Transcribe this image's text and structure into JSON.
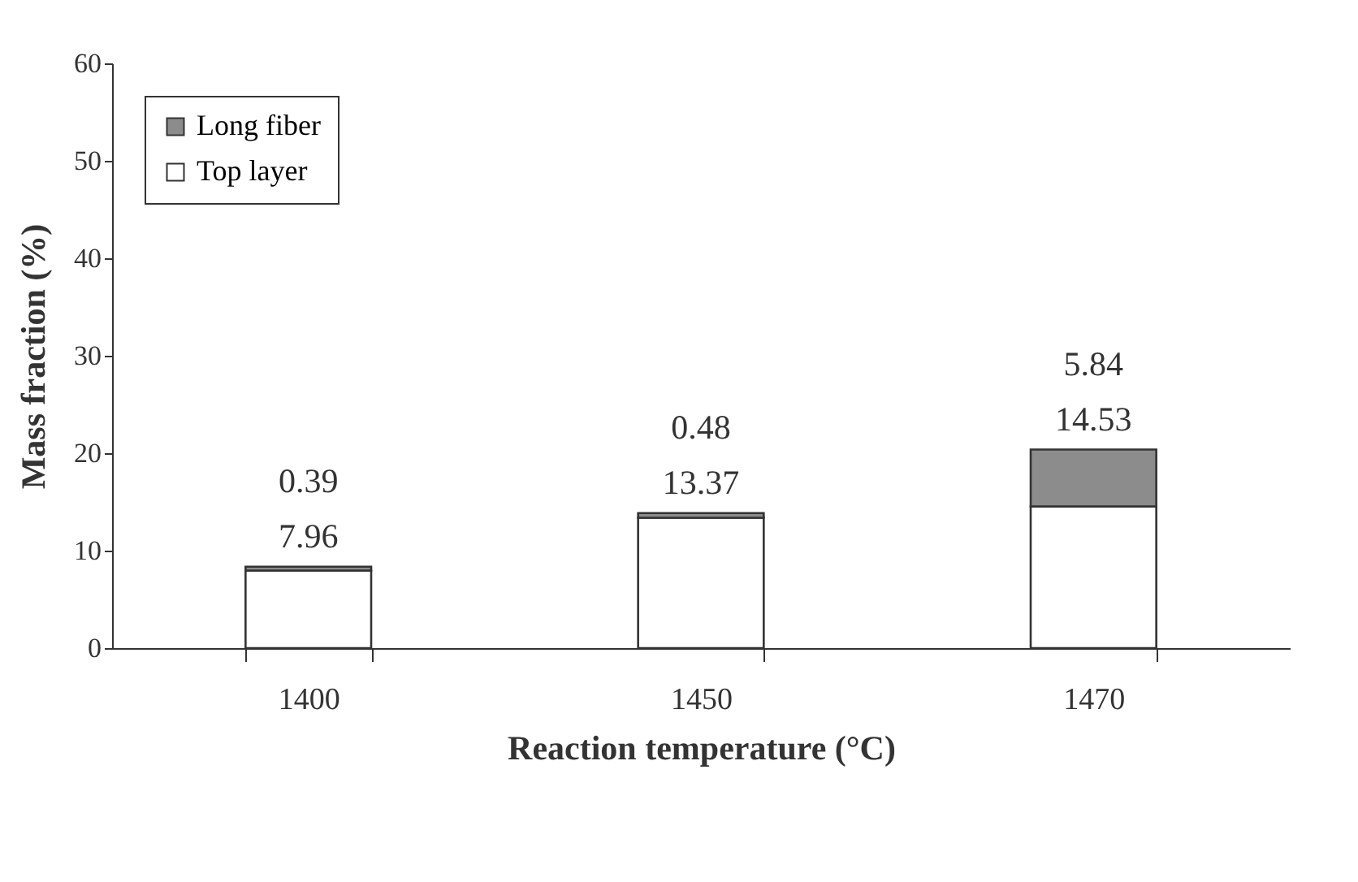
{
  "chart_data": {
    "type": "bar",
    "stacked": true,
    "xlabel": "Reaction temperature (°C)",
    "ylabel": "Mass fraction (%)",
    "categories": [
      "1400",
      "1450",
      "1470"
    ],
    "series": [
      {
        "name": "Top layer",
        "color": "#ffffff",
        "values": [
          7.96,
          13.37,
          14.53
        ]
      },
      {
        "name": "Long fiber",
        "color": "#8c8c8c",
        "values": [
          0.39,
          0.48,
          5.84
        ]
      }
    ],
    "ylim": [
      0,
      60
    ],
    "yticks": [
      0,
      10,
      20,
      30,
      40,
      50,
      60
    ],
    "grid": false,
    "legend": "top left",
    "data_labels": true
  }
}
